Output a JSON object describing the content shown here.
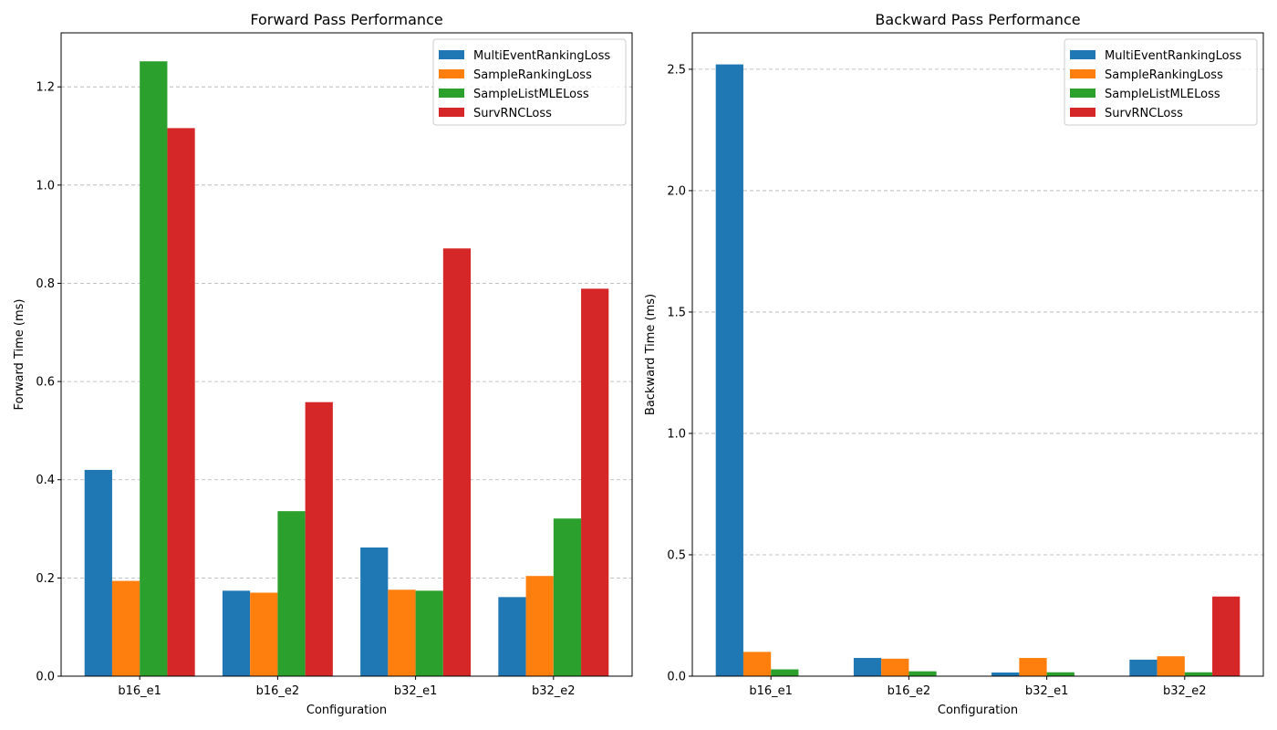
{
  "chart_data": [
    {
      "type": "bar",
      "title": "Forward Pass Performance",
      "xlabel": "Configuration",
      "ylabel": "Forward Time (ms)",
      "categories": [
        "b16_e1",
        "b16_e2",
        "b32_e1",
        "b32_e2"
      ],
      "ylim": [
        0,
        1.31
      ],
      "yticks": [
        "0.0",
        "0.2",
        "0.4",
        "0.6",
        "0.8",
        "1.0",
        "1.2"
      ],
      "grid": "y-dashed",
      "legend_position": "top-right",
      "series": [
        {
          "name": "MultiEventRankingLoss",
          "color": "#1f77b4",
          "values": [
            0.42,
            0.174,
            0.262,
            0.161
          ]
        },
        {
          "name": "SampleRankingLoss",
          "color": "#ff7f0e",
          "values": [
            0.194,
            0.17,
            0.176,
            0.204
          ]
        },
        {
          "name": "SampleListMLELoss",
          "color": "#2ca02c",
          "values": [
            1.252,
            0.336,
            0.174,
            0.321
          ]
        },
        {
          "name": "SurvRNCLoss",
          "color": "#d62728",
          "values": [
            1.116,
            0.558,
            0.871,
            0.789
          ]
        }
      ]
    },
    {
      "type": "bar",
      "title": "Backward Pass Performance",
      "xlabel": "Configuration",
      "ylabel": "Backward Time (ms)",
      "categories": [
        "b16_e1",
        "b16_e2",
        "b32_e1",
        "b32_e2"
      ],
      "ylim": [
        0,
        2.65
      ],
      "yticks": [
        "0.0",
        "0.5",
        "1.0",
        "1.5",
        "2.0",
        "2.5"
      ],
      "grid": "y-dashed",
      "legend_position": "top-right",
      "series": [
        {
          "name": "MultiEventRankingLoss",
          "color": "#1f77b4",
          "values": [
            2.52,
            0.075,
            0.015,
            0.068
          ]
        },
        {
          "name": "SampleRankingLoss",
          "color": "#ff7f0e",
          "values": [
            0.1,
            0.072,
            0.075,
            0.082
          ]
        },
        {
          "name": "SampleListMLELoss",
          "color": "#2ca02c",
          "values": [
            0.028,
            0.02,
            0.016,
            0.016
          ]
        },
        {
          "name": "SurvRNCLoss",
          "color": "#d62728",
          "values": [
            0.0,
            0.0,
            0.0,
            0.328
          ]
        }
      ]
    }
  ]
}
